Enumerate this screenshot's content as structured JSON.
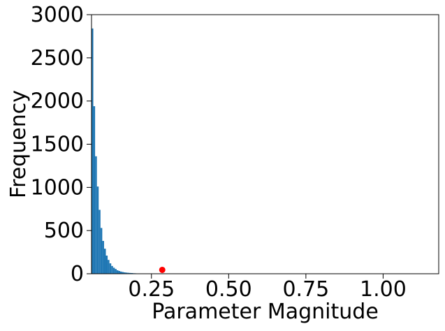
{
  "chart_data": {
    "type": "bar",
    "xlabel": "Parameter Magnitude",
    "ylabel": "Frequency",
    "xlim": [
      0.056,
      1.18
    ],
    "ylim": [
      0,
      3000
    ],
    "xticks": [
      0.25,
      0.5,
      0.75,
      1.0
    ],
    "xtick_labels": [
      "0.25",
      "0.50",
      "0.75",
      "1.00"
    ],
    "yticks": [
      0,
      500,
      1000,
      1500,
      2000,
      2500,
      3000
    ],
    "ytick_labels": [
      "0",
      "500",
      "1000",
      "1500",
      "2000",
      "2500",
      "3000"
    ],
    "grid": false,
    "bin_width": 0.0058,
    "bins": [
      {
        "x": 0.056,
        "value": 2840
      },
      {
        "x": 0.0618,
        "value": 1940
      },
      {
        "x": 0.0676,
        "value": 1360
      },
      {
        "x": 0.0734,
        "value": 1010
      },
      {
        "x": 0.0792,
        "value": 740
      },
      {
        "x": 0.085,
        "value": 530
      },
      {
        "x": 0.0908,
        "value": 380
      },
      {
        "x": 0.0966,
        "value": 290
      },
      {
        "x": 0.1024,
        "value": 210
      },
      {
        "x": 0.1082,
        "value": 160
      },
      {
        "x": 0.114,
        "value": 120
      },
      {
        "x": 0.1198,
        "value": 90
      },
      {
        "x": 0.1256,
        "value": 70
      },
      {
        "x": 0.1314,
        "value": 55
      },
      {
        "x": 0.1372,
        "value": 40
      },
      {
        "x": 0.143,
        "value": 32
      },
      {
        "x": 0.1488,
        "value": 25
      },
      {
        "x": 0.1546,
        "value": 20
      },
      {
        "x": 0.1604,
        "value": 16
      },
      {
        "x": 0.1662,
        "value": 13
      },
      {
        "x": 0.172,
        "value": 11
      },
      {
        "x": 0.1778,
        "value": 9
      },
      {
        "x": 0.1836,
        "value": 8
      },
      {
        "x": 0.1894,
        "value": 6
      },
      {
        "x": 0.1952,
        "value": 5
      },
      {
        "x": 0.201,
        "value": 4
      },
      {
        "x": 0.2068,
        "value": 4
      },
      {
        "x": 0.2126,
        "value": 3
      },
      {
        "x": 0.2184,
        "value": 3
      },
      {
        "x": 0.2242,
        "value": 2
      },
      {
        "x": 0.23,
        "value": 2
      },
      {
        "x": 0.2358,
        "value": 2
      },
      {
        "x": 0.2416,
        "value": 1
      },
      {
        "x": 0.2474,
        "value": 1
      },
      {
        "x": 0.2532,
        "value": 1
      },
      {
        "x": 0.259,
        "value": 1
      }
    ],
    "marker": {
      "x": 0.285,
      "y": 45
    },
    "bar_color": "#1f77b4",
    "marker_color": "#ff0000"
  }
}
